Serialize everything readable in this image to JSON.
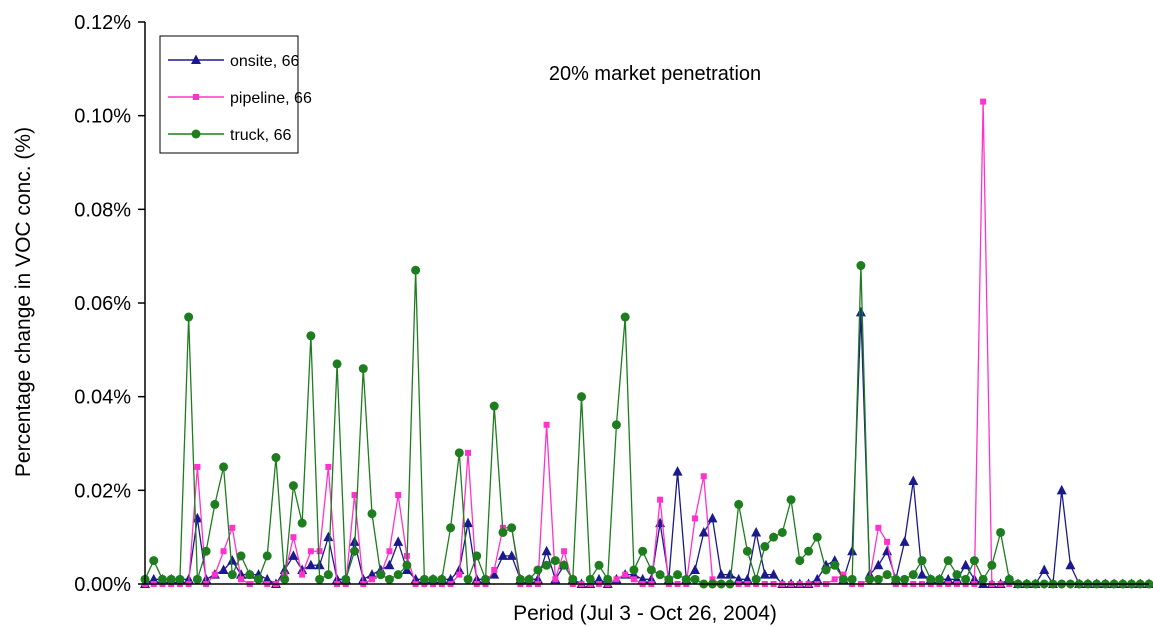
{
  "chart_data": {
    "type": "line",
    "annotation": "20% market penetration",
    "xlabel": "Period (Jul 3 - Oct 26, 2004)",
    "ylabel": "Percentage change in VOC conc. (%)",
    "ylim": [
      0,
      0.12
    ],
    "yticks": [
      0,
      0.02,
      0.04,
      0.06,
      0.08,
      0.1,
      0.12
    ],
    "ytick_labels": [
      "0.00%",
      "0.02%",
      "0.04%",
      "0.06%",
      "0.08%",
      "0.10%",
      "0.12%"
    ],
    "grid": false,
    "legend_position": "top-left",
    "x": [
      1,
      2,
      3,
      4,
      5,
      6,
      7,
      8,
      9,
      10,
      11,
      12,
      13,
      14,
      15,
      16,
      17,
      18,
      19,
      20,
      21,
      22,
      23,
      24,
      25,
      26,
      27,
      28,
      29,
      30,
      31,
      32,
      33,
      34,
      35,
      36,
      37,
      38,
      39,
      40,
      41,
      42,
      43,
      44,
      45,
      46,
      47,
      48,
      49,
      50,
      51,
      52,
      53,
      54,
      55,
      56,
      57,
      58,
      59,
      60,
      61,
      62,
      63,
      64,
      65,
      66,
      67,
      68,
      69,
      70,
      71,
      72,
      73,
      74,
      75,
      76,
      77,
      78,
      79,
      80,
      81,
      82,
      83,
      84,
      85,
      86,
      87,
      88,
      89,
      90,
      91,
      92,
      93,
      94,
      95,
      96,
      97,
      98,
      99,
      100,
      101,
      102,
      103,
      104,
      105,
      106,
      107,
      108,
      109,
      110,
      111,
      112,
      113,
      114,
      115,
      116
    ],
    "series": [
      {
        "name": "onsite, 66",
        "color": "#1a1a8c",
        "marker": "triangle",
        "values": [
          0,
          0.001,
          0.001,
          0.001,
          0.001,
          0.001,
          0.014,
          0.001,
          0.002,
          0.003,
          0.005,
          0.002,
          0.002,
          0.002,
          0.001,
          0,
          0.003,
          0.006,
          0.003,
          0.004,
          0.004,
          0.01,
          0.001,
          0.001,
          0.009,
          0.001,
          0.002,
          0.003,
          0.004,
          0.009,
          0.003,
          0.001,
          0.001,
          0.001,
          0.001,
          0.001,
          0.003,
          0.013,
          0.001,
          0.001,
          0.002,
          0.006,
          0.006,
          0.001,
          0.001,
          0.001,
          0.007,
          0.001,
          0.004,
          0.001,
          0,
          0,
          0.001,
          0,
          0.001,
          0.002,
          0.002,
          0.001,
          0.001,
          0.013,
          0.001,
          0.024,
          0.001,
          0.003,
          0.011,
          0.014,
          0.002,
          0.002,
          0.001,
          0.001,
          0.011,
          0.002,
          0.002,
          0,
          0,
          0,
          0,
          0.001,
          0.004,
          0.005,
          0.001,
          0.007,
          0.058,
          0.002,
          0.004,
          0.007,
          0.001,
          0.009,
          0.022,
          0.002,
          0.001,
          0.001,
          0.001,
          0.001,
          0.004,
          0.001,
          0,
          0,
          0,
          0.001,
          0,
          0,
          0,
          0.003,
          0,
          0.02,
          0.004,
          0,
          0,
          0,
          0,
          0,
          0,
          0,
          0,
          0
        ]
      },
      {
        "name": "pipeline, 66",
        "color": "#ff33cc",
        "marker": "square",
        "values": [
          0,
          0,
          0,
          0,
          0,
          0,
          0.025,
          0,
          0.002,
          0.007,
          0.012,
          0.001,
          0,
          0.001,
          0,
          0,
          0.002,
          0.01,
          0.002,
          0.007,
          0.007,
          0.025,
          0,
          0,
          0.019,
          0,
          0.001,
          0.002,
          0.007,
          0.019,
          0.006,
          0,
          0,
          0,
          0,
          0,
          0.002,
          0.028,
          0,
          0,
          0.003,
          0.012,
          0.012,
          0,
          0,
          0,
          0.034,
          0.001,
          0.007,
          0,
          0,
          0,
          0,
          0,
          0.001,
          0.002,
          0.001,
          0,
          0,
          0.018,
          0,
          0,
          0,
          0.014,
          0.023,
          0.001,
          0,
          0,
          0,
          0,
          0,
          0,
          0,
          0,
          0,
          0,
          0,
          0,
          0,
          0.001,
          0.002,
          0,
          0,
          0.001,
          0.012,
          0.009,
          0,
          0,
          0,
          0,
          0,
          0,
          0,
          0,
          0,
          0,
          0.103,
          0,
          0,
          0,
          0,
          0,
          0,
          0,
          0,
          0,
          0,
          0,
          0,
          0,
          0,
          0,
          0,
          0,
          0,
          0
        ]
      },
      {
        "name": "truck, 66",
        "color": "#1e7d1e",
        "marker": "circle",
        "values": [
          0.001,
          0.005,
          0.001,
          0.001,
          0.001,
          0.057,
          0.001,
          0.007,
          0.017,
          0.025,
          0.002,
          0.006,
          0.002,
          0.001,
          0.006,
          0.027,
          0.001,
          0.021,
          0.013,
          0.053,
          0.001,
          0.002,
          0.047,
          0.001,
          0.007,
          0.046,
          0.015,
          0.002,
          0.001,
          0.002,
          0.004,
          0.067,
          0.001,
          0.001,
          0.001,
          0.012,
          0.028,
          0.001,
          0.006,
          0.001,
          0.038,
          0.011,
          0.012,
          0.001,
          0.001,
          0.003,
          0.004,
          0.005,
          0.004,
          0.001,
          0.04,
          0.001,
          0.004,
          0.001,
          0.034,
          0.057,
          0.003,
          0.007,
          0.003,
          0.002,
          0.001,
          0.002,
          0.001,
          0.001,
          0,
          0,
          0,
          0,
          0.017,
          0.007,
          0.001,
          0.008,
          0.01,
          0.011,
          0.018,
          0.005,
          0.007,
          0.01,
          0.003,
          0.004,
          0.001,
          0.001,
          0.068,
          0.001,
          0.001,
          0.002,
          0.001,
          0.001,
          0.002,
          0.005,
          0.001,
          0.001,
          0.005,
          0.002,
          0.001,
          0.005,
          0.001,
          0.004,
          0.011,
          0.001,
          0,
          0,
          0,
          0,
          0,
          0,
          0,
          0,
          0,
          0,
          0,
          0,
          0,
          0,
          0,
          0
        ]
      }
    ]
  }
}
